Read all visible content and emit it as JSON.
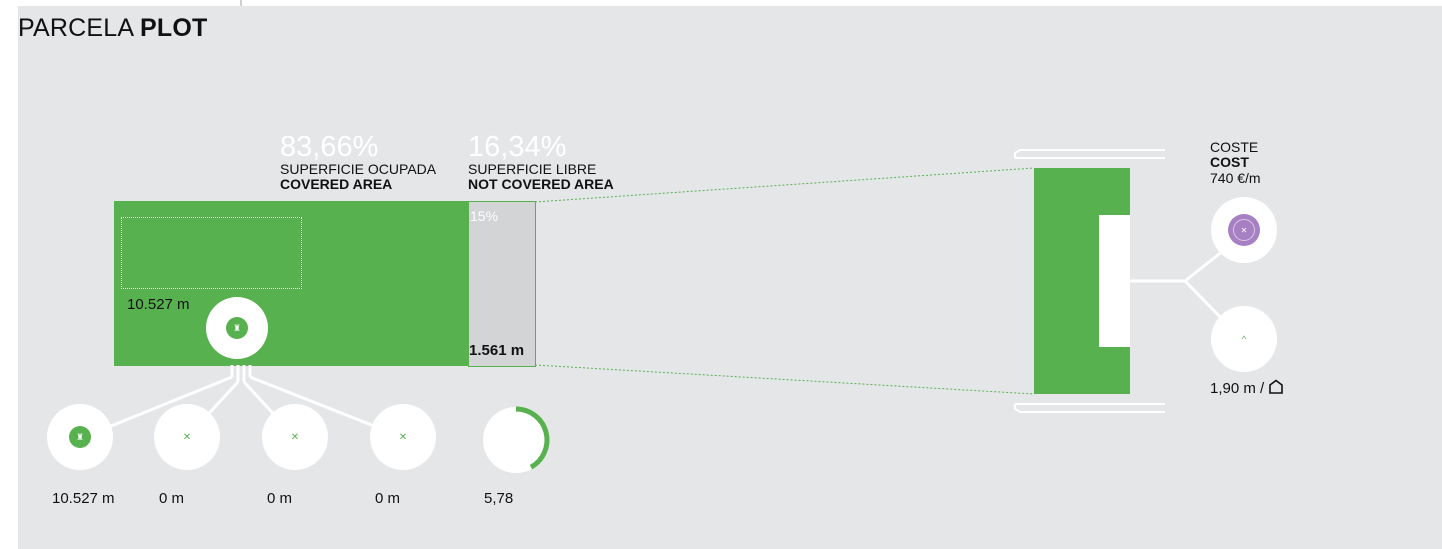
{
  "title": {
    "light": "PARCELA",
    "bold": "PLOT"
  },
  "covered": {
    "percent": "83,66%",
    "label_es": "SUPERFICIE OCUPADA",
    "label_en": "COVERED AREA",
    "length": "10.527 m",
    "fill": 0.8366
  },
  "free": {
    "percent": "16,34%",
    "label_es": "SUPERFICIE LIBRE",
    "label_en": "NOT COVERED AREA",
    "slope": "15%",
    "length": "1.561 m"
  },
  "breakdown": [
    {
      "value": "10.527 m",
      "icon": "tree-icon",
      "active": true
    },
    {
      "value": "0 m",
      "icon": "x-icon",
      "active": false
    },
    {
      "value": "0 m",
      "icon": "x-icon",
      "active": false
    },
    {
      "value": "0 m",
      "icon": "x-icon",
      "active": false
    }
  ],
  "gauge": {
    "value": "5,78",
    "fill": 0.42
  },
  "cost": {
    "label_es": "COSTE",
    "label_en": "COST",
    "value": "740 €/m",
    "height": "1,90 m /",
    "house_icon": "house-icon"
  },
  "colors": {
    "green": "#58b14f",
    "grey_free": "#d3d4d6",
    "purple": "#a780c4",
    "panel": "#e5e6e8"
  }
}
